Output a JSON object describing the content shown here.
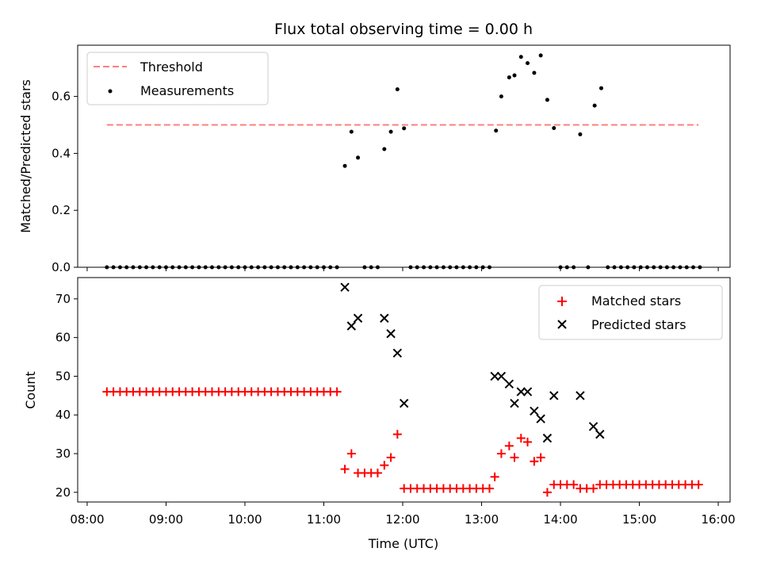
{
  "chart_data": {
    "title": "Flux total observing time = 0.00 h",
    "x_axis": {
      "label": "Time (UTC)",
      "ticks": [
        "08:00",
        "09:00",
        "10:00",
        "11:00",
        "12:00",
        "13:00",
        "14:00",
        "15:00",
        "16:00"
      ],
      "range_hours": [
        7.88,
        16.15
      ]
    },
    "panels": [
      {
        "type": "scatter",
        "ylabel": "Matched/Predicted stars",
        "ylim": [
          0,
          0.78
        ],
        "yticks": [
          "0.0",
          "0.2",
          "0.4",
          "0.6"
        ],
        "legend_position": "top-left",
        "threshold": {
          "name": "Threshold",
          "value": 0.5,
          "x_range": [
            8.25,
            15.75
          ],
          "color": "#ff7f7f"
        },
        "series": [
          {
            "name": "Measurements",
            "color": "#000000",
            "points": [
              [
                8.25,
                0
              ],
              [
                8.333,
                0
              ],
              [
                8.417,
                0
              ],
              [
                8.5,
                0
              ],
              [
                8.583,
                0
              ],
              [
                8.667,
                0
              ],
              [
                8.75,
                0
              ],
              [
                8.833,
                0
              ],
              [
                8.917,
                0
              ],
              [
                9.0,
                0
              ],
              [
                9.083,
                0
              ],
              [
                9.167,
                0
              ],
              [
                9.25,
                0
              ],
              [
                9.333,
                0
              ],
              [
                9.417,
                0
              ],
              [
                9.5,
                0
              ],
              [
                9.583,
                0
              ],
              [
                9.667,
                0
              ],
              [
                9.75,
                0
              ],
              [
                9.833,
                0
              ],
              [
                9.917,
                0
              ],
              [
                10.0,
                0
              ],
              [
                10.083,
                0
              ],
              [
                10.167,
                0
              ],
              [
                10.25,
                0
              ],
              [
                10.333,
                0
              ],
              [
                10.417,
                0
              ],
              [
                10.5,
                0
              ],
              [
                10.583,
                0
              ],
              [
                10.667,
                0
              ],
              [
                10.75,
                0
              ],
              [
                10.833,
                0
              ],
              [
                10.917,
                0
              ],
              [
                11.0,
                0
              ],
              [
                11.083,
                0
              ],
              [
                11.167,
                0
              ],
              [
                11.267,
                0.356
              ],
              [
                11.35,
                0.476
              ],
              [
                11.433,
                0.385
              ],
              [
                11.517,
                0
              ],
              [
                11.6,
                0
              ],
              [
                11.683,
                0
              ],
              [
                11.767,
                0.415
              ],
              [
                11.85,
                0.476
              ],
              [
                11.933,
                0.625
              ],
              [
                12.017,
                0.488
              ],
              [
                12.1,
                0
              ],
              [
                12.183,
                0
              ],
              [
                12.267,
                0
              ],
              [
                12.35,
                0
              ],
              [
                12.433,
                0
              ],
              [
                12.517,
                0
              ],
              [
                12.6,
                0
              ],
              [
                12.683,
                0
              ],
              [
                12.767,
                0
              ],
              [
                12.85,
                0
              ],
              [
                12.933,
                0
              ],
              [
                13.017,
                0
              ],
              [
                13.1,
                0
              ],
              [
                13.183,
                0.48
              ],
              [
                13.25,
                0.6
              ],
              [
                13.35,
                0.667
              ],
              [
                13.417,
                0.674
              ],
              [
                13.5,
                0.739
              ],
              [
                13.583,
                0.717
              ],
              [
                13.667,
                0.683
              ],
              [
                13.75,
                0.744
              ],
              [
                13.833,
                0.588
              ],
              [
                13.917,
                0.489
              ],
              [
                14.0,
                0
              ],
              [
                14.083,
                0
              ],
              [
                14.167,
                0
              ],
              [
                14.25,
                0.467
              ],
              [
                14.35,
                0
              ],
              [
                14.433,
                0.568
              ],
              [
                14.517,
                0.629
              ],
              [
                14.6,
                0
              ],
              [
                14.683,
                0
              ],
              [
                14.767,
                0
              ],
              [
                14.85,
                0
              ],
              [
                14.933,
                0
              ],
              [
                15.017,
                0
              ],
              [
                15.1,
                0
              ],
              [
                15.183,
                0
              ],
              [
                15.267,
                0
              ],
              [
                15.35,
                0
              ],
              [
                15.433,
                0
              ],
              [
                15.517,
                0
              ],
              [
                15.6,
                0
              ],
              [
                15.683,
                0
              ],
              [
                15.767,
                0
              ]
            ]
          }
        ]
      },
      {
        "type": "scatter",
        "ylabel": "Count",
        "ylim": [
          17.5,
          75.5
        ],
        "yticks": [
          "20",
          "30",
          "40",
          "50",
          "60",
          "70"
        ],
        "legend_position": "top-right",
        "series": [
          {
            "name": "Matched stars",
            "color": "#ff0000",
            "marker": "plus",
            "points": [
              [
                8.25,
                46
              ],
              [
                8.333,
                46
              ],
              [
                8.417,
                46
              ],
              [
                8.5,
                46
              ],
              [
                8.583,
                46
              ],
              [
                8.667,
                46
              ],
              [
                8.75,
                46
              ],
              [
                8.833,
                46
              ],
              [
                8.917,
                46
              ],
              [
                9.0,
                46
              ],
              [
                9.083,
                46
              ],
              [
                9.167,
                46
              ],
              [
                9.25,
                46
              ],
              [
                9.333,
                46
              ],
              [
                9.417,
                46
              ],
              [
                9.5,
                46
              ],
              [
                9.583,
                46
              ],
              [
                9.667,
                46
              ],
              [
                9.75,
                46
              ],
              [
                9.833,
                46
              ],
              [
                9.917,
                46
              ],
              [
                10.0,
                46
              ],
              [
                10.083,
                46
              ],
              [
                10.167,
                46
              ],
              [
                10.25,
                46
              ],
              [
                10.333,
                46
              ],
              [
                10.417,
                46
              ],
              [
                10.5,
                46
              ],
              [
                10.583,
                46
              ],
              [
                10.667,
                46
              ],
              [
                10.75,
                46
              ],
              [
                10.833,
                46
              ],
              [
                10.917,
                46
              ],
              [
                11.0,
                46
              ],
              [
                11.083,
                46
              ],
              [
                11.167,
                46
              ],
              [
                11.267,
                26
              ],
              [
                11.35,
                30
              ],
              [
                11.433,
                25
              ],
              [
                11.517,
                25
              ],
              [
                11.6,
                25
              ],
              [
                11.683,
                25
              ],
              [
                11.767,
                27
              ],
              [
                11.85,
                29
              ],
              [
                11.933,
                35
              ],
              [
                12.017,
                21
              ],
              [
                12.1,
                21
              ],
              [
                12.183,
                21
              ],
              [
                12.267,
                21
              ],
              [
                12.35,
                21
              ],
              [
                12.433,
                21
              ],
              [
                12.517,
                21
              ],
              [
                12.6,
                21
              ],
              [
                12.683,
                21
              ],
              [
                12.767,
                21
              ],
              [
                12.85,
                21
              ],
              [
                12.933,
                21
              ],
              [
                13.017,
                21
              ],
              [
                13.1,
                21
              ],
              [
                13.167,
                24
              ],
              [
                13.25,
                30
              ],
              [
                13.35,
                32
              ],
              [
                13.417,
                29
              ],
              [
                13.5,
                34
              ],
              [
                13.583,
                33
              ],
              [
                13.667,
                28
              ],
              [
                13.75,
                29
              ],
              [
                13.833,
                20
              ],
              [
                13.917,
                22
              ],
              [
                14.0,
                22
              ],
              [
                14.083,
                22
              ],
              [
                14.167,
                22
              ],
              [
                14.25,
                21
              ],
              [
                14.333,
                21
              ],
              [
                14.417,
                21
              ],
              [
                14.5,
                22
              ],
              [
                14.583,
                22
              ],
              [
                14.667,
                22
              ],
              [
                14.75,
                22
              ],
              [
                14.833,
                22
              ],
              [
                14.917,
                22
              ],
              [
                15.0,
                22
              ],
              [
                15.083,
                22
              ],
              [
                15.167,
                22
              ],
              [
                15.25,
                22
              ],
              [
                15.333,
                22
              ],
              [
                15.417,
                22
              ],
              [
                15.5,
                22
              ],
              [
                15.583,
                22
              ],
              [
                15.667,
                22
              ],
              [
                15.75,
                22
              ]
            ]
          },
          {
            "name": "Predicted stars",
            "color": "#000000",
            "marker": "x",
            "points": [
              [
                11.267,
                73
              ],
              [
                11.35,
                63
              ],
              [
                11.433,
                65
              ],
              [
                11.767,
                65
              ],
              [
                11.85,
                61
              ],
              [
                11.933,
                56
              ],
              [
                12.017,
                43
              ],
              [
                13.167,
                50
              ],
              [
                13.25,
                50
              ],
              [
                13.35,
                48
              ],
              [
                13.417,
                43
              ],
              [
                13.5,
                46
              ],
              [
                13.583,
                46
              ],
              [
                13.667,
                41
              ],
              [
                13.75,
                39
              ],
              [
                13.833,
                34
              ],
              [
                13.917,
                45
              ],
              [
                14.25,
                45
              ],
              [
                14.417,
                37
              ],
              [
                14.5,
                35
              ]
            ]
          }
        ]
      }
    ]
  }
}
